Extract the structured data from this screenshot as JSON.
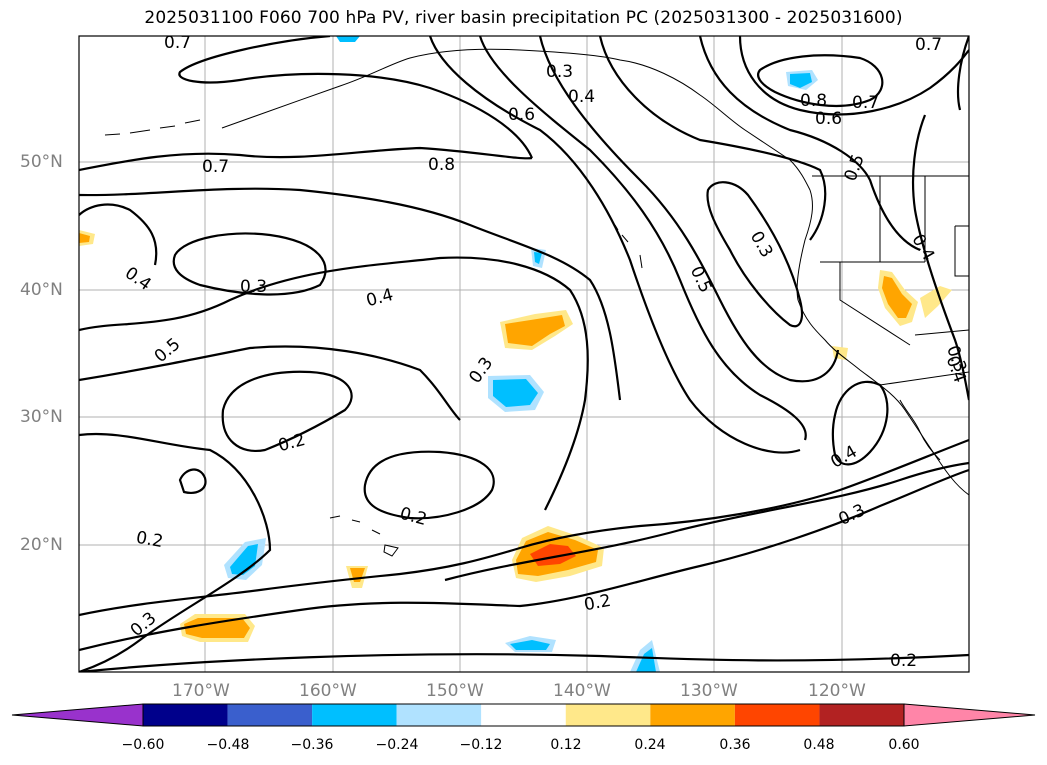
{
  "title": "2025031100 F060 700 hPa PV, river basin precipitation PC (2025031300 - 2025031600)",
  "lat_labels": [
    "50°N",
    "40°N",
    "30°N",
    "20°N"
  ],
  "lon_labels": [
    "170°W",
    "160°W",
    "150°W",
    "140°W",
    "130°W",
    "120°W"
  ],
  "contour_labels": [
    "0.7",
    "0.3",
    "0.7",
    "0.4",
    "0.8",
    "0.7",
    "0.6",
    "0.6",
    "0.7",
    "0.8",
    "0.5",
    "0.4",
    "0.3",
    "0.4",
    "0.3",
    "0.5",
    "0.5",
    "0.4",
    "0.3",
    "0.2",
    "0.2",
    "0.2",
    "0.3",
    "0.3",
    "0.4",
    "0.2",
    "0.2",
    "0.3",
    "0.4"
  ],
  "colorbar": {
    "ticks": [
      "−0.60",
      "−0.48",
      "−0.36",
      "−0.24",
      "−0.12",
      "0.12",
      "0.24",
      "0.36",
      "0.48",
      "0.60"
    ],
    "colors": [
      "#9932CC",
      "#00008B",
      "#3A5FCD",
      "#00BFFF",
      "#B0E2FF",
      "#FFFFFF",
      "#FFE88A",
      "#FFA500",
      "#FF4500",
      "#B22222",
      "#FF85A8"
    ]
  }
}
